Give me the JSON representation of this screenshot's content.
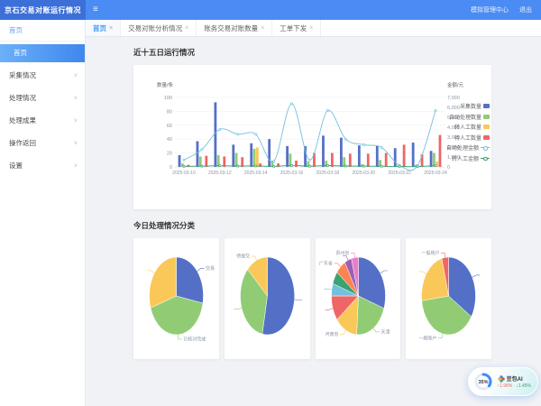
{
  "glyphs": {
    "close": "×",
    "chevron": "∨",
    "hamburger": "≡"
  },
  "topbar": {
    "brand": "京石交易对账运行情况",
    "links": [
      {
        "label": "模拟管理中心"
      },
      {
        "label": "退出"
      }
    ]
  },
  "sidebar": {
    "home": "首页",
    "active": "首页",
    "items": [
      {
        "label": "采集情况"
      },
      {
        "label": "处理情况"
      },
      {
        "label": "处理成果"
      },
      {
        "label": "操作返回"
      },
      {
        "label": "设置"
      }
    ]
  },
  "tabs": [
    {
      "label": "首页",
      "active": true
    },
    {
      "label": "交易对账分析情况",
      "active": false
    },
    {
      "label": "账务交易对账数量",
      "active": false
    },
    {
      "label": "工单下发",
      "active": false
    }
  ],
  "sections": {
    "runStatus": "近十五日运行情况",
    "todayClass": "今日处理情况分类"
  },
  "assistant": {
    "percent": "35%",
    "name": "豆包AI",
    "stat_up": "↑1.98%",
    "stat_down": "↓1.45%"
  },
  "chart_data": [
    {
      "type": "bar",
      "title": "近十五日运行情况",
      "xlabel": "",
      "ylabel_left": "数量/条",
      "ylabel_right": "金额/元",
      "ylim_left": [
        0,
        100
      ],
      "ylim_right": [
        0,
        7000
      ],
      "yticks_left": [
        0,
        20,
        40,
        60,
        80,
        100
      ],
      "yticks_right": [
        0,
        1000,
        2000,
        3000,
        4000,
        5000,
        6000,
        7000
      ],
      "x": [
        "2025-03-10",
        "2025-03-11",
        "2025-03-12",
        "2025-03-13",
        "2025-03-14",
        "2025-03-15",
        "2025-03-16",
        "2025-03-17",
        "2025-03-18",
        "2025-03-19",
        "2025-03-20",
        "2025-03-21",
        "2025-03-22",
        "2025-03-23",
        "2025-03-24"
      ],
      "x_label_every": 2,
      "legend_position": "right",
      "series": [
        {
          "name": "采集数量",
          "type": "bar",
          "color": "#5470c6",
          "values": [
            17,
            37,
            93,
            32,
            34,
            40,
            30,
            30,
            45,
            42,
            31,
            30,
            27,
            35,
            23
          ]
        },
        {
          "name": "自动处理数量",
          "type": "bar",
          "color": "#91cc75",
          "values": [
            5,
            15,
            17,
            20,
            26,
            9,
            19,
            8,
            9,
            14,
            4,
            10,
            2,
            3,
            20
          ]
        },
        {
          "name": "转人工数量",
          "type": "bar",
          "color": "#fac858",
          "values": [
            0,
            0,
            0,
            0,
            28,
            0,
            0,
            0,
            0,
            0,
            0,
            0,
            0,
            0,
            8
          ]
        },
        {
          "name": "待人工数量",
          "type": "bar",
          "color": "#ee6666",
          "values": [
            3,
            16,
            15,
            14,
            5,
            5,
            9,
            20,
            20,
            19,
            19,
            20,
            32,
            18,
            46
          ]
        },
        {
          "name": "自动处理金额",
          "type": "line",
          "axis": "right",
          "color": "#73c0de",
          "values": [
            700,
            1750,
            3780,
            3290,
            3290,
            560,
            6370,
            700,
            5670,
            2800,
            2240,
            1960,
            140,
            140,
            5670
          ]
        },
        {
          "name": "转人工金额",
          "type": "line",
          "axis": "right",
          "color": "#3ba272",
          "values": [
            60,
            80,
            120,
            90,
            100,
            60,
            150,
            70,
            140,
            90,
            80,
            70,
            40,
            40,
            130
          ]
        }
      ]
    },
    {
      "type": "pie",
      "title": "今日处理情况分类-1",
      "slices": [
        {
          "label": "交易",
          "value": 28,
          "color": "#5470c6",
          "leader": true
        },
        {
          "label": "已核对完成",
          "value": 42,
          "color": "#91cc75",
          "leader": true
        },
        {
          "label": "",
          "value": 30,
          "color": "#fac858",
          "leader": true
        }
      ]
    },
    {
      "type": "pie",
      "title": "今日处理情况分类-2",
      "slices": [
        {
          "label": "",
          "value": 53,
          "color": "#5470c6",
          "leader": true
        },
        {
          "label": "",
          "value": 34,
          "color": "#91cc75",
          "leader": true
        },
        {
          "label": "待提交",
          "value": 13,
          "color": "#fac858",
          "leader": true
        }
      ]
    },
    {
      "type": "pie",
      "title": "今日处理情况分类-3",
      "slices": [
        {
          "label": "",
          "value": 29,
          "color": "#5470c6",
          "leader": true
        },
        {
          "label": "天津",
          "value": 20,
          "color": "#91cc75",
          "leader": true
        },
        {
          "label": "河南省",
          "value": 13,
          "color": "#fac858",
          "leader": true
        },
        {
          "label": "",
          "value": 10,
          "color": "#ee6666",
          "leader": true
        },
        {
          "label": "",
          "value": 5,
          "color": "#73c0de",
          "leader": true
        },
        {
          "label": "",
          "value": 5,
          "color": "#3ba272",
          "leader": false
        },
        {
          "label": "广东省",
          "value": 6,
          "color": "#fc8452",
          "leader": true
        },
        {
          "label": "",
          "value": 4,
          "color": "#9a60b4",
          "leader": true
        },
        {
          "label": "贵州省",
          "value": 4,
          "color": "#ea7ccc",
          "leader": true
        }
      ]
    },
    {
      "type": "pie",
      "title": "今日处理情况分类-4",
      "slices": [
        {
          "label": "",
          "value": 34,
          "color": "#5470c6",
          "leader": true
        },
        {
          "label": "一般账户",
          "value": 39,
          "color": "#91cc75",
          "leader": true
        },
        {
          "label": "",
          "value": 23,
          "color": "#fac858",
          "leader": true
        },
        {
          "label": "一般账户",
          "value": 4,
          "color": "#ee6666",
          "leader": true
        }
      ]
    }
  ]
}
